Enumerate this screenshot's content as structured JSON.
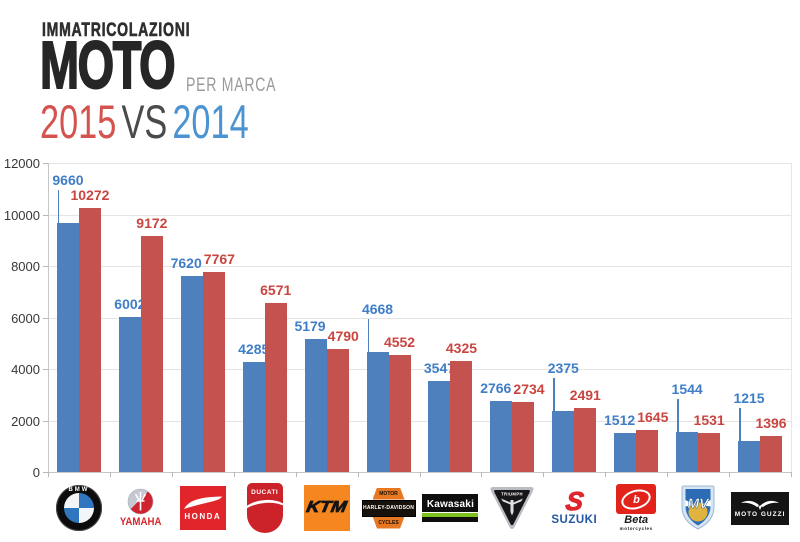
{
  "header": {
    "line1": "IMMATRICOLAZIONI",
    "title": "MOTO",
    "subtitle": "PER MARCA",
    "year_2015": "2015",
    "vs": "VS",
    "year_2014": "2014"
  },
  "chart_data": {
    "type": "bar",
    "title": "Immatricolazioni moto per marca: 2015 vs 2014",
    "categories": [
      "BMW",
      "Yamaha",
      "Honda",
      "Ducati",
      "KTM",
      "Harley-Davidson",
      "Kawasaki",
      "Triumph",
      "Suzuki",
      "Beta",
      "MV Agusta",
      "Moto Guzzi"
    ],
    "series": [
      {
        "name": "2014",
        "color": "#4d80bd",
        "label_color": "#3f7ec7",
        "values": [
          9660,
          6002,
          7620,
          4285,
          5179,
          4668,
          3547,
          2766,
          2375,
          1512,
          1544,
          1215
        ]
      },
      {
        "name": "2015",
        "color": "#c4534f",
        "label_color": "#ca4540",
        "values": [
          10272,
          9172,
          7767,
          6571,
          4790,
          4552,
          4325,
          2734,
          2491,
          1645,
          1531,
          1396
        ]
      }
    ],
    "xlabel": "",
    "ylabel": "",
    "ylim": [
      0,
      12000
    ],
    "ytick_step": 2000,
    "yticks": [
      "0",
      "2000",
      "4000",
      "6000",
      "8000",
      "10000",
      "12000"
    ],
    "grid": true,
    "legend_position": "none",
    "leader_line_labels_series0": [
      0,
      5,
      8,
      10,
      11
    ]
  },
  "colors": {
    "bar_2014_blue": "#4d80bd",
    "bar_2015_red": "#c4534f",
    "header_year_2015_red": "#d5534e",
    "header_year_2014_blue": "#4b93d1",
    "header_vs_gray": "#4a4a4a",
    "header_dark": "#2e2e2e",
    "header_subtitle_gray": "#9a9a9a",
    "gridline": "#e4e4e4"
  },
  "logos": {
    "bmw": {
      "text": "BMW"
    },
    "yamaha": {
      "text": "YAMAHA"
    },
    "honda": {
      "text": "HONDA"
    },
    "ducati": {
      "text": "DUCATI"
    },
    "ktm": {
      "text": "KTM"
    },
    "harley": {
      "top": "MOTOR",
      "middle": "HARLEY-DAVIDSON",
      "bottom": "CYCLES"
    },
    "kawasaki": {
      "text": "Kawasaki"
    },
    "triumph": {
      "text": "TRIUMPH"
    },
    "suzuki": {
      "s": "S",
      "text": "SUZUKI"
    },
    "beta": {
      "b": "b",
      "text": "Beta",
      "sub": "motorcycles"
    },
    "mv": {
      "text": "MV"
    },
    "motoguzzi": {
      "text": "MOTO GUZZI"
    }
  }
}
